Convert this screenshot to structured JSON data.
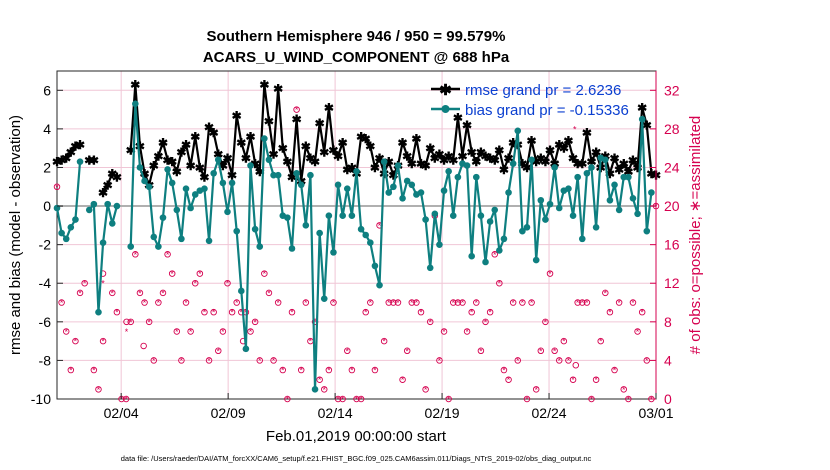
{
  "chart_data": {
    "type": "line",
    "title_line1": "Southern Hemisphere 946 / 950 = 99.579%",
    "title_line2": "ACARS_U_WIND_COMPONENT @ 688 hPa",
    "ylabel_left": "rmse and bias (model - observation)",
    "ylabel_right": "# of obs: o=possible; ∗=assimilated",
    "xlabel": "Feb.01,2019 00:00:00 start",
    "footnote": "data file: /Users/raeder/DAI/ATM_forcXX/CAM6_setup/f.e21.FHIST_BGC.f09_025.CAM6assim.011/Diags_NTrS_2019-02/obs_diag_output.nc",
    "ylim_left": [
      -10,
      7
    ],
    "ylim_right": [
      0,
      34
    ],
    "xlim": [
      1,
      29
    ],
    "xticks": [
      {
        "x": 4,
        "label": "02/04"
      },
      {
        "x": 9,
        "label": "02/09"
      },
      {
        "x": 14,
        "label": "02/14"
      },
      {
        "x": 19,
        "label": "02/19"
      },
      {
        "x": 24,
        "label": "02/24"
      },
      {
        "x": 29,
        "label": "03/01"
      }
    ],
    "yticks_left": [
      "6",
      "4",
      "2",
      "0",
      "-2",
      "-4",
      "-6",
      "-8",
      "-10"
    ],
    "yticks_right": [
      "32",
      "28",
      "24",
      "20",
      "16",
      "12",
      "8",
      "4",
      "0"
    ],
    "colors": {
      "rmse": "#000000",
      "bias": "#0e7f80",
      "obs": "#d6004f",
      "legend_text": "#0b3fd0",
      "zero_line": "#b0b0b0",
      "grid": "#f0c6d6"
    },
    "legend": [
      {
        "name": "rmse grand pr = 2.6236"
      },
      {
        "name": "bias grand pr = -0.15336"
      }
    ],
    "series": [
      {
        "name": "rmse",
        "values": [
          2.3,
          2.4,
          2.5,
          2.8,
          3.1,
          3.2,
          null,
          2.4,
          2.4,
          null,
          0.7,
          1.1,
          1.7,
          1.5,
          null,
          null,
          2.9,
          6.3,
          3.1,
          1.7,
          1.1,
          2.1,
          2.6,
          3.3,
          2.4,
          2.3,
          1.8,
          2.8,
          3.2,
          2.1,
          3.6,
          2.0,
          1.5,
          4.1,
          3.8,
          2.7,
          2.1,
          2.5,
          1.6,
          4.7,
          3.3,
          2.5,
          3.6,
          2.2,
          1.8,
          6.3,
          4.4,
          2.7,
          6.1,
          3.0,
          2.3,
          1.5,
          4.5,
          1.3,
          3.1,
          2.5,
          2.3,
          4.3,
          2.8,
          5.1,
          2.9,
          2.6,
          3.3,
          1.9,
          2.0,
          1.7,
          3.6,
          3.5,
          3.1,
          2.0,
          2.5,
          1.7,
          2.3,
          1.6,
          2.1,
          3.3,
          2.6,
          2.2,
          3.5,
          2.2,
          2.1,
          3.0,
          2.5,
          2.7,
          2.4,
          2.6,
          2.4,
          4.6,
          2.6,
          4.2,
          2.8,
          2.3,
          2.8,
          2.6,
          2.5,
          2.4,
          2.9,
          1.9,
          2.5,
          3.3,
          3.2,
          2.2,
          2.0,
          3.4,
          2.3,
          2.5,
          2.3,
          2.9,
          2.2,
          3.2,
          3.0,
          3.4,
          2.5,
          2.2,
          2.2,
          3.8,
          2.3,
          2.8,
          2.0,
          2.6,
          1.7,
          2.5,
          1.9,
          2.2,
          1.8,
          2.4,
          2.0,
          5.1,
          4.2,
          1.7,
          1.6
        ],
        "marker": "asterisk"
      },
      {
        "name": "bias",
        "values": [
          -0.1,
          -1.4,
          -1.7,
          -1.1,
          -0.7,
          2.3,
          null,
          -0.2,
          0.1,
          -5.5,
          -1.9,
          0.1,
          -0.9,
          0.0,
          null,
          null,
          -2.1,
          5.3,
          2.0,
          1.3,
          1.0,
          -1.6,
          -2.1,
          -0.6,
          1.9,
          1.2,
          -0.2,
          -1.7,
          0.9,
          -0.1,
          0.6,
          0.8,
          0.9,
          -1.8,
          1.7,
          2.4,
          1.2,
          -0.3,
          1.2,
          -1.3,
          -4.4,
          -7.4,
          2.1,
          -1.2,
          -2.1,
          3.5,
          2.4,
          1.6,
          1.6,
          -0.5,
          -0.6,
          -2.2,
          1.7,
          1.1,
          -1.0,
          1.6,
          -9.5,
          -1.4,
          -4.8,
          -0.5,
          -2.4,
          1.1,
          -0.5,
          0.9,
          -0.5,
          1.8,
          -1.2,
          -1.5,
          -1.9,
          -3.1,
          -4.1,
          2.3,
          0.7,
          1.0,
          2.1,
          0.4,
          1.3,
          1.1,
          0.6,
          0.7,
          -0.7,
          -3.2,
          -0.4,
          -2.0,
          0.8,
          1.8,
          -0.5,
          1.5,
          2.2,
          2.1,
          -2.6,
          1.5,
          -0.5,
          -2.9,
          -0.8,
          -0.2,
          -2.3,
          -1.7,
          0.7,
          2.2,
          3.9,
          -1.3,
          -1.1,
          2.4,
          -2.8,
          0.3,
          -0.7,
          0.1,
          2.0,
          -0.1,
          0.8,
          0.9,
          -0.5,
          1.5,
          -1.7,
          1.7,
          2.0,
          -1.1,
          2.5,
          2.4,
          0.3,
          1.1,
          -0.2,
          1.5,
          1.5,
          0.4,
          -0.4,
          4.5,
          -1.3,
          0.7,
          null
        ],
        "marker": "circle"
      }
    ],
    "obs_possible": [
      22,
      10,
      7,
      3,
      6,
      11,
      12,
      null,
      3,
      1,
      6,
      null,
      11,
      9,
      0,
      0,
      8,
      15,
      11,
      10,
      8,
      4,
      10,
      11,
      15,
      13,
      7,
      4,
      10,
      7,
      12,
      13,
      9,
      4,
      9,
      5,
      7,
      12,
      9,
      10,
      9,
      9,
      7,
      8,
      4,
      13,
      11,
      4,
      10,
      3,
      0,
      9,
      30,
      3,
      10,
      6,
      8,
      2,
      1,
      3,
      10,
      0,
      0,
      5,
      3,
      0,
      0,
      9,
      10,
      3,
      18,
      6,
      10,
      10,
      10,
      2,
      5,
      10,
      10,
      9,
      1,
      8,
      19,
      4,
      7,
      0,
      10,
      10,
      10,
      7,
      9,
      10,
      5,
      8,
      9,
      15,
      12,
      3,
      2,
      10,
      4,
      10,
      0,
      10,
      1,
      5,
      8,
      13,
      5,
      4,
      6,
      4,
      2,
      10,
      10,
      10,
      0,
      2,
      6,
      11,
      9,
      3,
      10,
      1,
      0,
      10,
      7,
      9,
      4,
      0,
      20
    ],
    "obs_assimilated": [
      22,
      10,
      7,
      3,
      6,
      11,
      12,
      null,
      3,
      1,
      6,
      null,
      11,
      9,
      0,
      0,
      8,
      15,
      11,
      10,
      8,
      4,
      10,
      11,
      15,
      13,
      7,
      4,
      10,
      7,
      12,
      13,
      9,
      4,
      9,
      5,
      7,
      12,
      9,
      10,
      9,
      9,
      7,
      8,
      4,
      13,
      11,
      4,
      10,
      3,
      0,
      9,
      30,
      3,
      10,
      6,
      8,
      2,
      1,
      3,
      10,
      0,
      0,
      5,
      3,
      0,
      0,
      9,
      10,
      3,
      18,
      6,
      10,
      10,
      10,
      2,
      5,
      10,
      10,
      9,
      1,
      8,
      19,
      4,
      7,
      0,
      10,
      10,
      10,
      7,
      9,
      10,
      5,
      8,
      9,
      15,
      12,
      3,
      2,
      10,
      4,
      10,
      0,
      10,
      1,
      5,
      8,
      13,
      5,
      4,
      6,
      4,
      2,
      10,
      10,
      10,
      0,
      2,
      6,
      11,
      9,
      3,
      10,
      1,
      0,
      10,
      7,
      9,
      4,
      0,
      20
    ],
    "obs_extra_possible": [
      {
        "x": 3.15,
        "y": 13.0
      },
      {
        "x": 4.25,
        "y": 8.0
      },
      {
        "x": 5.05,
        "y": 5.5
      },
      {
        "x": 9.7,
        "y": 6.0
      },
      {
        "x": 25.25,
        "y": 3.5
      }
    ],
    "obs_extra_assimilated": [
      {
        "x": 3.15,
        "y": 12.0
      },
      {
        "x": 4.25,
        "y": 7.0
      },
      {
        "x": 9.75,
        "y": 5.0
      },
      {
        "x": 25.2,
        "y": 28.0
      }
    ]
  }
}
